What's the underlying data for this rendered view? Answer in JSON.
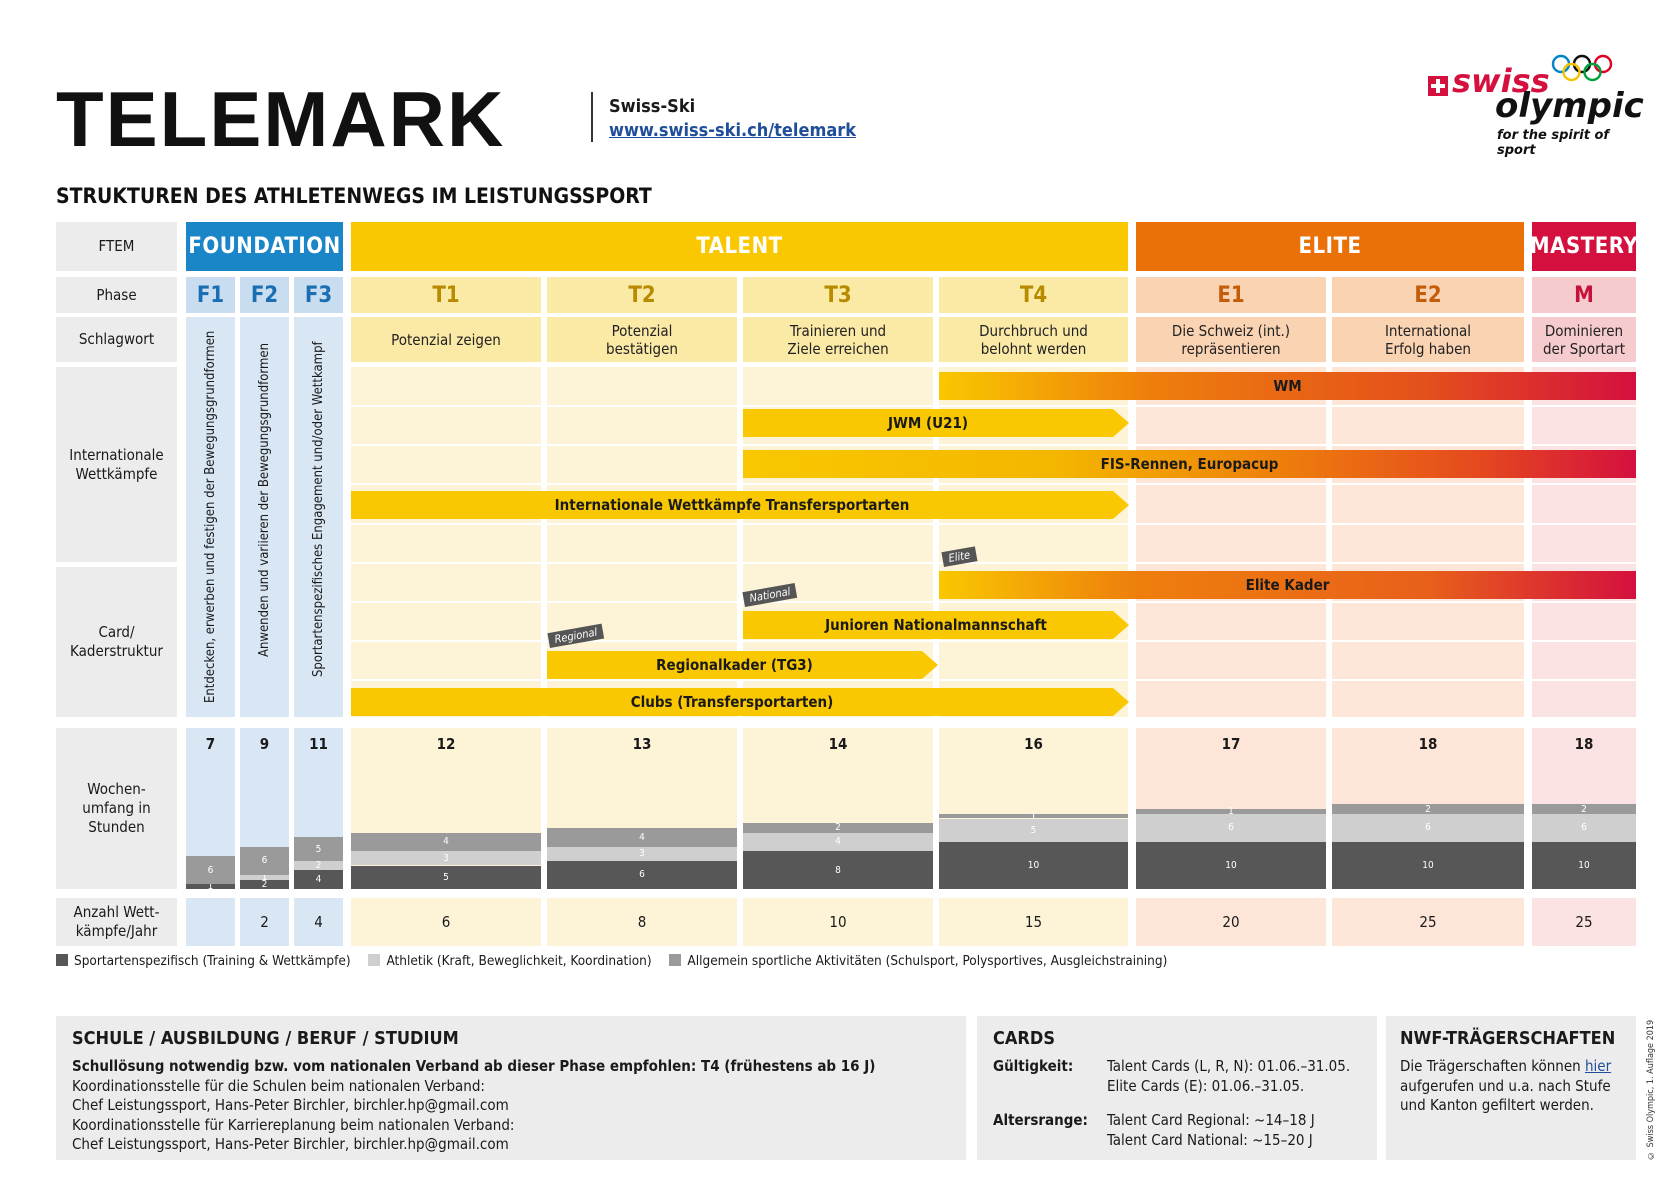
{
  "header": {
    "title": "TELEMARK",
    "org": "Swiss-Ski",
    "url": "www.swiss-ski.ch/telemark",
    "logo_swiss": "swiss",
    "logo_olympic": "olympic",
    "logo_tagline": "for the spirit of sport",
    "subtitle": "STRUKTUREN DES ATHLETENWEGS IM LEISTUNGSSPORT"
  },
  "row_labels": {
    "ftem": "FTEM",
    "phase": "Phase",
    "keyword": "Schlagwort",
    "international": "Internationale Wettkämpfe",
    "card": "Card/ Kaderstruktur",
    "hours": "Wochen- umfang in Stunden",
    "competitions": "Anzahl Wett- kämpfe/Jahr"
  },
  "ftem": {
    "foundation": "FOUNDATION",
    "talent": "TALENT",
    "elite": "ELITE",
    "mastery": "MASTERY"
  },
  "phases": [
    "F1",
    "F2",
    "F3",
    "T1",
    "T2",
    "T3",
    "T4",
    "E1",
    "E2",
    "M"
  ],
  "keywords": {
    "T1": "Potenzial zeigen",
    "T2": "Potenzial bestätigen",
    "T3": "Trainieren und Ziele erreichen",
    "T4": "Durchbruch und belohnt werden",
    "E1": "Die Schweiz (int.) repräsentieren",
    "E2": "International Erfolg haben",
    "M": "Dominieren der Sportart"
  },
  "foundation_vertical": {
    "F1": "Entdecken, erwerben und festigen der Bewegungsgrundformen",
    "F2": "Anwenden und variieren der Bewegungsgrundformen",
    "F3": "Sportartenspezifisches Engagement und/oder Wettkampf"
  },
  "international_bars": {
    "wm": "WM",
    "jwm": "JWM (U21)",
    "fis": "FIS-Rennen, Europacup",
    "transfer": "Internationale Wettkämpfe Transfersportarten"
  },
  "card_bars": {
    "elite": "Elite Kader",
    "elite_tag": "Elite",
    "junioren": "Junioren Nationalmannschaft",
    "national_tag": "National",
    "regional": "Regionalkader (TG3)",
    "regional_tag": "Regional",
    "clubs": "Clubs (Transfersportarten)"
  },
  "hours": {
    "F1": {
      "total": "7",
      "sport": "1",
      "athletic": "",
      "general": "6"
    },
    "F2": {
      "total": "9",
      "sport": "2",
      "athletic": "1",
      "general": "6"
    },
    "F3": {
      "total": "11",
      "sport": "4",
      "athletic": "2",
      "general": "5"
    },
    "T1": {
      "total": "12",
      "sport": "5",
      "athletic": "3",
      "general": "4"
    },
    "T2": {
      "total": "13",
      "sport": "6",
      "athletic": "3",
      "general": "4"
    },
    "T3": {
      "total": "14",
      "sport": "8",
      "athletic": "4",
      "general": "2"
    },
    "T4": {
      "total": "16",
      "sport": "10",
      "athletic": "5",
      "general": "1"
    },
    "E1": {
      "total": "17",
      "sport": "10",
      "athletic": "6",
      "general": "1"
    },
    "E2": {
      "total": "18",
      "sport": "10",
      "athletic": "6",
      "general": "2"
    },
    "M": {
      "total": "18",
      "sport": "10",
      "athletic": "6",
      "general": "2"
    }
  },
  "competitions": {
    "F1": "",
    "F2": "2",
    "F3": "4",
    "T1": "6",
    "T2": "8",
    "T3": "10",
    "T4": "15",
    "E1": "20",
    "E2": "25",
    "M": "25"
  },
  "legend": {
    "sport": "Sportartenspezifisch (Training & Wettkämpfe)",
    "athletic": "Athletik (Kraft, Beweglichkeit, Koordination)",
    "general": "Allgemein sportliche Aktivitäten (Schulsport, Polysportives, Ausgleichstraining)"
  },
  "school": {
    "heading": "SCHULE / AUSBILDUNG / BERUF / STUDIUM",
    "bold_line": "Schullösung notwendig bzw. vom nationalen Verband ab dieser Phase empfohlen: T4 (frühestens ab 16 J)",
    "line1": "Koordinationsstelle für die Schulen beim nationalen Verband:",
    "line2": "Chef Leistungssport, Hans-Peter Birchler, birchler.hp@gmail.com",
    "line3": "Koordinationsstelle für Karriereplanung beim nationalen Verband:",
    "line4": "Chef Leistungssport, Hans-Peter Birchler, birchler.hp@gmail.com"
  },
  "cards": {
    "heading": "CARDS",
    "validity_label": "Gültigkeit:",
    "validity_1": "Talent Cards (L, R, N): 01.06.–31.05.",
    "validity_2": "Elite Cards (E): 01.06.–31.05.",
    "age_label": "Altersrange:",
    "age_1": "Talent Card Regional: ~14–18 J",
    "age_2": "Talent Card National: ~15–20 J"
  },
  "nwf": {
    "heading": "NWF-TRÄGERSCHAFTEN",
    "text_before": "Die Trägerschaften können ",
    "link": "hier",
    "text_after": " aufgerufen und u.a. nach Stufe und Kanton gefiltert werden."
  },
  "copyright": "© Swiss Olympic, 1. Auflage 2019",
  "colors": {
    "foundation": "#1a86c8",
    "talent": "#f9c800",
    "elite": "#ea7008",
    "mastery": "#d4103e",
    "sport": "#575757",
    "athletic": "#cfcfcf",
    "general": "#9a9a9a"
  }
}
